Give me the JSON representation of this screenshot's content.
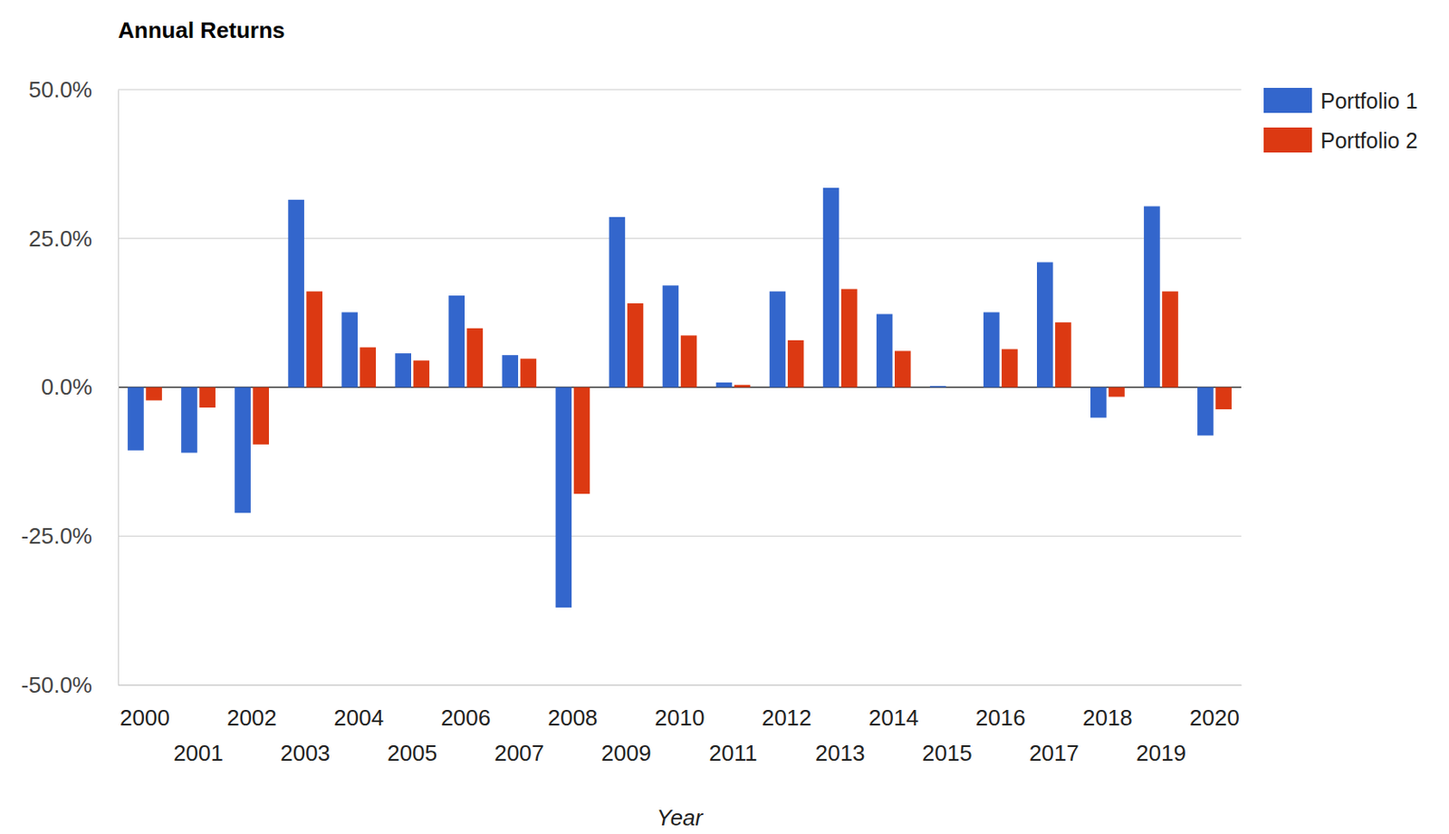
{
  "chart_data": {
    "type": "bar",
    "title": "Annual Returns",
    "x_label": "Year",
    "categories": [
      "2000",
      "2001",
      "2002",
      "2003",
      "2004",
      "2005",
      "2006",
      "2007",
      "2008",
      "2009",
      "2010",
      "2011",
      "2012",
      "2013",
      "2014",
      "2015",
      "2016",
      "2017",
      "2018",
      "2019",
      "2020"
    ],
    "series": [
      {
        "name": "Portfolio 1",
        "color": "#3366cc",
        "values": [
          -10.6,
          -11.0,
          -21.1,
          31.5,
          12.6,
          5.7,
          15.4,
          5.4,
          -37.0,
          28.6,
          17.1,
          0.8,
          16.1,
          33.5,
          12.3,
          0.2,
          12.6,
          21.0,
          -5.1,
          30.4,
          -8.1
        ]
      },
      {
        "name": "Portfolio 2",
        "color": "#dc3912",
        "values": [
          -2.2,
          -3.4,
          -9.6,
          16.1,
          6.7,
          4.5,
          9.9,
          4.8,
          -17.9,
          14.1,
          8.7,
          0.4,
          7.9,
          16.5,
          6.1,
          0.0,
          6.4,
          10.9,
          -1.6,
          16.1,
          -3.7
        ]
      }
    ],
    "ylim": [
      -50,
      50
    ],
    "yticks": [
      {
        "value": -50,
        "label": "-50.0%"
      },
      {
        "value": -25,
        "label": "-25.0%"
      },
      {
        "value": 0,
        "label": "0.0%"
      },
      {
        "value": 25,
        "label": "25.0%"
      },
      {
        "value": 50,
        "label": "50.0%"
      }
    ],
    "grid": true,
    "legend": "right"
  }
}
